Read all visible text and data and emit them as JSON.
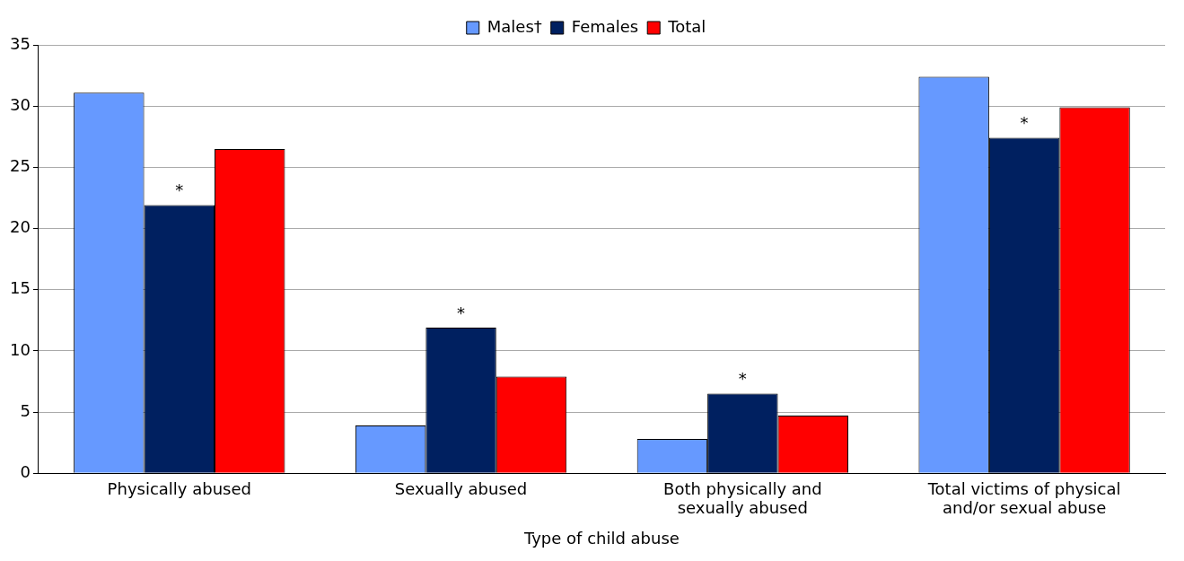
{
  "chart_data": {
    "type": "bar",
    "xlabel": "Type of child abuse",
    "categories": [
      "Physically abused",
      "Sexually abused",
      "Both physically and sexually abused",
      "Total victims of physical and/or sexual abuse"
    ],
    "series": [
      {
        "name": "Males†",
        "color": "#6699ff",
        "values": [
          31.1,
          3.9,
          2.8,
          32.4
        ]
      },
      {
        "name": "Females",
        "color": "#002060",
        "values": [
          21.9,
          11.9,
          6.5,
          27.4
        ]
      },
      {
        "name": "Total",
        "color": "#ff0000",
        "values": [
          26.5,
          7.9,
          4.7,
          29.9
        ]
      }
    ],
    "ylim": [
      0,
      35
    ],
    "yticks": [
      0,
      5,
      10,
      15,
      20,
      25,
      30,
      35
    ],
    "grid": "y",
    "legend": "top",
    "annotations": [
      {
        "text": "*",
        "x": "Physically abused",
        "y": 21.9
      },
      {
        "text": "*",
        "x": "Sexually abused",
        "y": 11.9
      },
      {
        "text": "*",
        "x": "Both physically and sexually abused",
        "y": 6.5
      },
      {
        "text": "*",
        "x": "Total victims of physical and/or sexual abuse",
        "y": 27.4
      }
    ]
  }
}
